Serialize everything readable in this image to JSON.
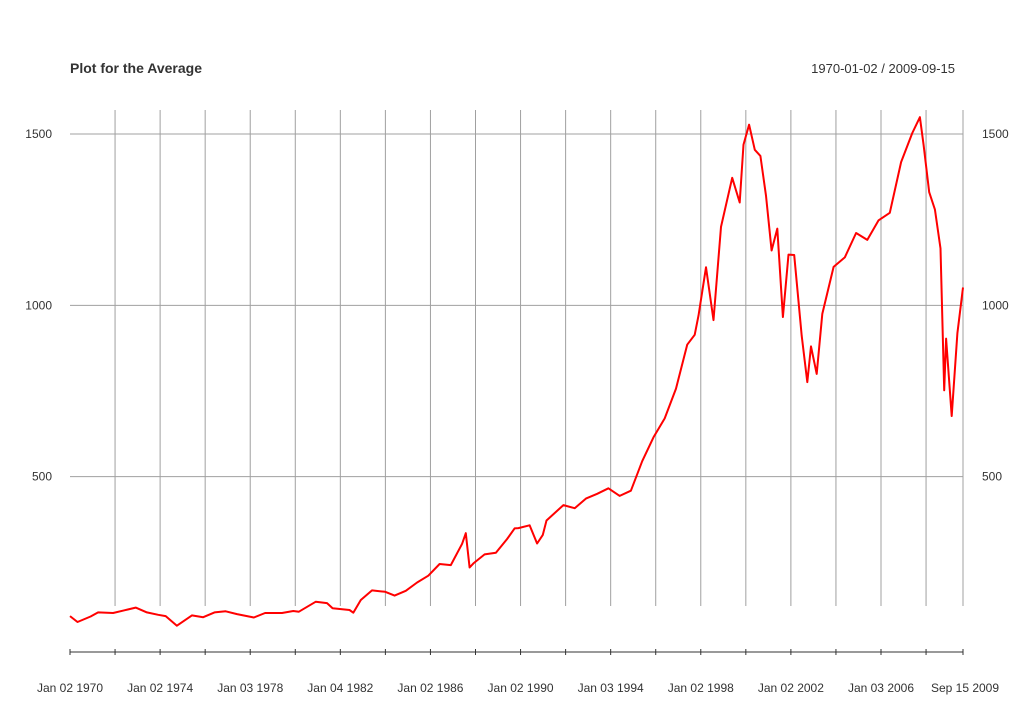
{
  "chart_data": {
    "type": "line",
    "title": "Plot for the Average",
    "date_range": "1970-01-02 / 2009-09-15",
    "x_tick_labels": [
      "Jan 02 1970",
      "Jan 02 1974",
      "Jan 03 1978",
      "Jan 04 1982",
      "Jan 02 1986",
      "Jan 02 1990",
      "Jan 03 1994",
      "Jan 02 1998",
      "Jan 02 2002",
      "Jan 03 2006",
      "Sep 15 2009"
    ],
    "x_range": [
      "1970-01-02",
      "2009-09-15"
    ],
    "y_ticks": [
      500,
      1000,
      1500
    ],
    "ylim": [
      0,
      1570
    ],
    "y_axis_both_sides": true,
    "grid": true,
    "line_color": "#ff0000",
    "grid_color": "#a0a0a0",
    "series": [
      {
        "x": [
          "1970-01",
          "1970-05",
          "1970-12",
          "1971-04",
          "1971-12",
          "1972-06",
          "1972-12",
          "1973-06",
          "1973-12",
          "1974-04",
          "1974-10",
          "1975-06",
          "1975-12",
          "1976-06",
          "1976-12",
          "1977-06",
          "1978-03",
          "1978-09",
          "1979-06",
          "1979-12",
          "1980-03",
          "1980-12",
          "1981-06",
          "1981-09",
          "1982-06",
          "1982-08",
          "1982-12",
          "1983-06",
          "1984-01",
          "1984-06",
          "1984-12",
          "1985-06",
          "1985-12",
          "1986-06",
          "1986-12",
          "1987-06",
          "1987-08",
          "1987-10",
          "1987-12",
          "1988-06",
          "1988-12",
          "1989-06",
          "1989-10",
          "1989-12",
          "1990-06",
          "1990-10",
          "1991-01",
          "1991-03",
          "1991-12",
          "1992-06",
          "1992-12",
          "1993-06",
          "1993-12",
          "1994-06",
          "1994-12",
          "1995-06",
          "1995-12",
          "1996-06",
          "1996-12",
          "1997-06",
          "1997-10",
          "1997-12",
          "1998-04",
          "1998-08",
          "1998-12",
          "1999-06",
          "1999-10",
          "1999-12",
          "2000-03",
          "2000-06",
          "2000-09",
          "2000-12",
          "2001-03",
          "2001-06",
          "2001-09",
          "2001-12",
          "2002-03",
          "2002-07",
          "2002-10",
          "2002-12",
          "2003-03",
          "2003-06",
          "2003-12",
          "2004-06",
          "2004-12",
          "2005-06",
          "2005-12",
          "2006-06",
          "2006-12",
          "2007-06",
          "2007-10",
          "2007-12",
          "2008-03",
          "2008-06",
          "2008-09",
          "2008-11",
          "2008-12",
          "2009-03",
          "2009-06",
          "2009-09"
        ],
        "y": [
          93,
          76,
          92,
          104,
          102,
          110,
          118,
          104,
          97,
          93,
          65,
          95,
          90,
          104,
          107,
          99,
          89,
          102,
          102,
          108,
          106,
          135,
          131,
          116,
          111,
          103,
          140,
          168,
          164,
          153,
          167,
          191,
          211,
          245,
          242,
          304,
          335,
          235,
          247,
          273,
          278,
          318,
          349,
          350,
          358,
          305,
          330,
          372,
          417,
          408,
          436,
          450,
          466,
          444,
          459,
          545,
          615,
          670,
          757,
          885,
          914,
          970,
          1111,
          957,
          1229,
          1372,
          1300,
          1469,
          1527,
          1454,
          1436,
          1320,
          1160,
          1224,
          966,
          1148,
          1147,
          911,
          776,
          880,
          800,
          975,
          1112,
          1140,
          1211,
          1191,
          1248,
          1270,
          1418,
          1503,
          1549,
          1468,
          1330,
          1280,
          1166,
          752,
          903,
          677,
          919,
          1052
        ]
      }
    ]
  }
}
